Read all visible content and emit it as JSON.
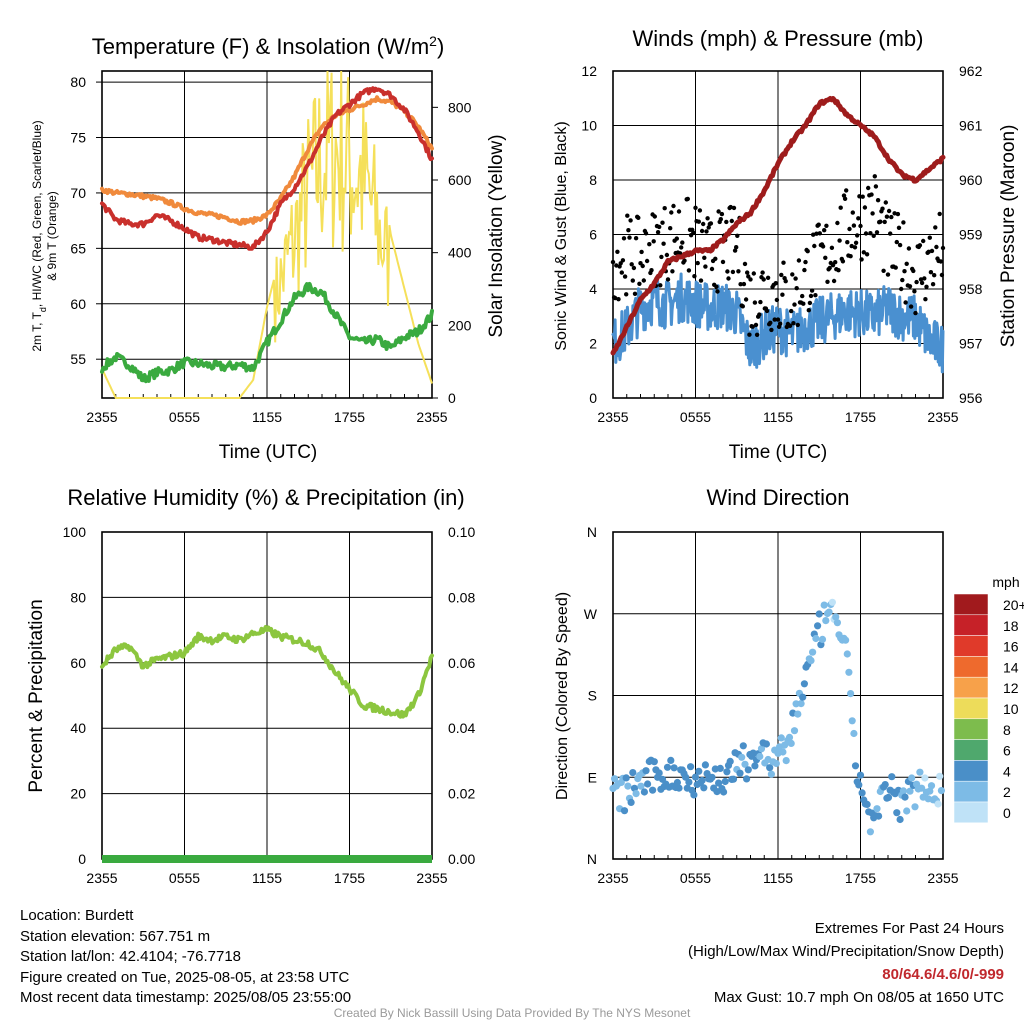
{
  "panels": {
    "temperature": {
      "title": "Temperature (F) & Insolation (W/m",
      "title_sup": "2",
      "title_end": ")",
      "ylabel_left": "2m T, T",
      "ylabel_left_sub": "d",
      "ylabel_left_rest": ", HI/WC (Red, Green, Scarlet/Blue)",
      "ylabel_left_line2": "& 9m T (Orange)",
      "ylabel_right": "Solar Insolation (Yellow)",
      "xlabel": "Time (UTC)"
    },
    "winds": {
      "title": "Winds (mph) & Pressure (mb)",
      "ylabel_left": "Sonic Wind & Gust (Blue, Black)",
      "ylabel_right": "Station Pressure (Maroon)",
      "xlabel": "Time (UTC)"
    },
    "humidity": {
      "title": "Relative Humidity (%) & Precipitation (in)",
      "ylabel_left": "Percent & Precipitation"
    },
    "direction": {
      "title": "Wind Direction",
      "ylabel_left": "Direction (Colored By Speed)",
      "legend_title": "mph"
    }
  },
  "x_ticks": [
    "2355",
    "0555",
    "1155",
    "1755",
    "2355"
  ],
  "chart_data": [
    {
      "type": "line",
      "title": "Temperature (F) & Insolation (W/m2)",
      "xlabel": "Time (UTC)",
      "x_range_hours": [
        0,
        24
      ],
      "ylim_left": [
        51.5,
        81
      ],
      "ylim_right": [
        0,
        900
      ],
      "yticks_left": [
        55,
        60,
        65,
        70,
        75,
        80
      ],
      "yticks_right": [
        0,
        200,
        400,
        600,
        800
      ],
      "series": [
        {
          "name": "9m T (Orange)",
          "color": "#f08a3c",
          "axis": "left",
          "x": [
            0,
            1,
            2,
            3,
            4,
            5,
            6,
            7,
            8,
            9,
            10,
            11,
            12,
            13,
            14,
            15,
            16,
            17,
            18,
            19,
            20,
            21,
            22,
            23,
            24
          ],
          "y": [
            70.3,
            70.0,
            69.9,
            69.7,
            69.5,
            69.1,
            68.6,
            68.2,
            68.0,
            67.8,
            67.4,
            67.5,
            68.0,
            69.5,
            71.5,
            74.0,
            76.0,
            77.0,
            77.5,
            78.0,
            78.5,
            78.2,
            77.4,
            76.0,
            74.0
          ]
        },
        {
          "name": "2m T (Red)",
          "color": "#c9302c",
          "axis": "left",
          "x": [
            0,
            1,
            2,
            3,
            4,
            5,
            6,
            7,
            8,
            9,
            10,
            11,
            12,
            13,
            14,
            15,
            16,
            17,
            18,
            19,
            20,
            21,
            22,
            23,
            24
          ],
          "y": [
            69.0,
            67.6,
            67.2,
            67.2,
            68.0,
            67.5,
            66.8,
            66.0,
            65.8,
            65.5,
            65.3,
            65.1,
            66.5,
            69.0,
            70.5,
            72.5,
            75.0,
            77.0,
            78.0,
            79.0,
            79.5,
            78.8,
            77.5,
            75.5,
            73.0
          ]
        },
        {
          "name": "Td (Green)",
          "color": "#3aaa3f",
          "axis": "left",
          "x": [
            0,
            1,
            2,
            3,
            4,
            5,
            6,
            7,
            8,
            9,
            10,
            11,
            12,
            13,
            14,
            15,
            16,
            17,
            18,
            19,
            20,
            21,
            22,
            23,
            24
          ],
          "y": [
            54.2,
            55.2,
            54.5,
            53.2,
            53.8,
            54.0,
            54.7,
            54.6,
            54.4,
            54.3,
            54.5,
            54.2,
            56.5,
            58.5,
            60.5,
            61.5,
            61.0,
            59.0,
            57.0,
            56.5,
            56.8,
            56.0,
            57.0,
            57.5,
            59.0
          ]
        },
        {
          "name": "Solar Insolation (Yellow)",
          "color": "#f5e05a",
          "axis": "right",
          "x": [
            0,
            1,
            2,
            3,
            4,
            5,
            6,
            7,
            8,
            9,
            10,
            11,
            12,
            13,
            14,
            15,
            16,
            17,
            18,
            19,
            20,
            21,
            22,
            23,
            24
          ],
          "y": [
            80,
            0,
            0,
            0,
            0,
            0,
            0,
            0,
            0,
            0,
            0,
            50,
            250,
            400,
            550,
            700,
            820,
            850,
            800,
            750,
            600,
            450,
            300,
            150,
            40
          ]
        }
      ]
    },
    {
      "type": "line",
      "title": "Winds (mph) & Pressure (mb)",
      "xlabel": "Time (UTC)",
      "x_range_hours": [
        0,
        24
      ],
      "ylim_left": [
        0,
        12
      ],
      "ylim_right": [
        956,
        962
      ],
      "yticks_left": [
        0,
        2,
        4,
        6,
        8,
        10,
        12
      ],
      "yticks_right": [
        956,
        957,
        958,
        959,
        960,
        961,
        962
      ],
      "series": [
        {
          "name": "Sonic Wind (Blue)",
          "color": "#4a90d0",
          "axis": "left",
          "x": [
            0,
            1,
            2,
            3,
            4,
            5,
            6,
            7,
            8,
            9,
            10,
            11,
            12,
            13,
            14,
            15,
            16,
            17,
            18,
            19,
            20,
            21,
            22,
            23,
            24
          ],
          "y": [
            2.0,
            2.5,
            3.3,
            3.6,
            3.4,
            3.7,
            3.5,
            3.3,
            3.4,
            3.1,
            1.8,
            2.3,
            2.6,
            2.3,
            2.6,
            2.8,
            3.0,
            3.2,
            3.1,
            3.0,
            3.3,
            3.0,
            2.9,
            2.1,
            1.8
          ]
        },
        {
          "name": "Gust (Black)",
          "color": "#000000",
          "axis": "left",
          "style": "points",
          "x": [
            0,
            1,
            2,
            3,
            4,
            5,
            6,
            7,
            8,
            9,
            10,
            11,
            12,
            13,
            14,
            15,
            16,
            17,
            18,
            19,
            20,
            21,
            22,
            23,
            24
          ],
          "y": [
            5.0,
            5.3,
            5.1,
            5.5,
            5.8,
            6.0,
            5.7,
            5.2,
            5.5,
            5.6,
            3.5,
            4.0,
            3.8,
            3.5,
            4.5,
            5.0,
            5.5,
            6.2,
            6.5,
            7.0,
            5.5,
            5.2,
            4.5,
            5.0,
            5.5
          ]
        },
        {
          "name": "Station Pressure (Maroon)",
          "color": "#9e1c1c",
          "axis": "right",
          "x": [
            0,
            1,
            2,
            3,
            4,
            5,
            6,
            7,
            8,
            9,
            10,
            11,
            12,
            13,
            14,
            15,
            16,
            17,
            18,
            19,
            20,
            21,
            22,
            23,
            24
          ],
          "y": [
            956.8,
            957.3,
            957.8,
            958.1,
            958.5,
            958.6,
            958.7,
            958.7,
            958.9,
            959.2,
            959.4,
            959.8,
            960.3,
            960.7,
            961.0,
            961.4,
            961.5,
            961.2,
            961.0,
            960.8,
            960.4,
            960.1,
            960.0,
            960.2,
            960.4
          ]
        }
      ]
    },
    {
      "type": "line",
      "title": "Relative Humidity (%) & Precipitation (in)",
      "x_range_hours": [
        0,
        24
      ],
      "ylim_left": [
        0,
        100
      ],
      "ylim_right": [
        0,
        0.1
      ],
      "yticks_left": [
        0,
        20,
        40,
        60,
        80,
        100
      ],
      "yticks_right": [
        "0.00",
        "0.02",
        "0.04",
        "0.06",
        "0.08",
        "0.10"
      ],
      "series": [
        {
          "name": "Relative Humidity",
          "color": "#8cc63f",
          "axis": "left",
          "x": [
            0,
            1,
            2,
            3,
            4,
            5,
            6,
            7,
            8,
            9,
            10,
            11,
            12,
            13,
            14,
            15,
            16,
            17,
            18,
            19,
            20,
            21,
            22,
            23,
            24
          ],
          "y": [
            59,
            64,
            65,
            59,
            61,
            62,
            63,
            68,
            67,
            68,
            67,
            69,
            70,
            68,
            67,
            66,
            63,
            57,
            52,
            47,
            46,
            45,
            44,
            50,
            62
          ]
        },
        {
          "name": "Precipitation",
          "color": "#3aaa3f",
          "axis": "right",
          "x": [
            0,
            24
          ],
          "y": [
            0,
            0
          ]
        }
      ]
    },
    {
      "type": "scatter",
      "title": "Wind Direction",
      "x_range_hours": [
        0,
        24
      ],
      "yticks": [
        "N",
        "E",
        "S",
        "W",
        "N"
      ],
      "ylim_degrees": [
        0,
        360
      ],
      "legend": {
        "title": "mph",
        "labels": [
          "20+",
          "18",
          "16",
          "14",
          "12",
          "10",
          "8",
          "6",
          "4",
          "2",
          "0"
        ],
        "colors": [
          "#a11a1d",
          "#c62128",
          "#e03a2a",
          "#ee6a2d",
          "#f7a14a",
          "#eddc5a",
          "#7dbc4d",
          "#4fa86d",
          "#4a8fc8",
          "#7dbbe6",
          "#bfe2f7"
        ]
      },
      "series": [
        {
          "name": "direction",
          "x": [
            0.0,
            0.5,
            1.0,
            1.5,
            2.0,
            2.5,
            3.0,
            3.5,
            4.0,
            4.5,
            5.0,
            5.5,
            6.0,
            6.5,
            7.0,
            7.5,
            8.0,
            8.5,
            9.0,
            9.5,
            10.0,
            10.5,
            11.0,
            11.5,
            12.0,
            12.5,
            13.0,
            13.5,
            14.0,
            14.5,
            15.0,
            15.5,
            16.0,
            16.5,
            17.0,
            17.5,
            18.0,
            18.5,
            19.0,
            19.5,
            20.0,
            20.5,
            21.0,
            21.5,
            22.0,
            22.5,
            23.0,
            23.5
          ],
          "y": [
            75,
            70,
            72,
            80,
            85,
            88,
            90,
            92,
            93,
            91,
            93,
            92,
            90,
            90,
            88,
            87,
            90,
            95,
            100,
            105,
            110,
            120,
            115,
            105,
            112,
            115,
            140,
            175,
            200,
            220,
            250,
            265,
            265,
            260,
            220,
            120,
            85,
            50,
            40,
            60,
            75,
            70,
            60,
            70,
            78,
            85,
            80,
            75
          ],
          "speed": [
            2,
            2,
            3,
            3,
            3,
            4,
            4,
            4,
            4,
            4,
            4,
            4,
            4,
            4,
            4,
            4,
            4,
            4,
            3,
            3,
            4,
            4,
            3,
            3,
            3,
            2,
            3,
            2,
            3,
            3,
            4,
            2,
            1,
            2,
            2,
            3,
            4,
            4,
            3,
            3,
            4,
            4,
            3,
            3,
            2,
            2,
            1,
            1
          ]
        }
      ]
    }
  ],
  "info": {
    "location": "Location: Burdett",
    "elevation": "Station elevation: 567.751 m",
    "latlon": "Station lat/lon: 42.4104; -76.7718",
    "created": "Figure created on Tue, 2025-08-05, at 23:58 UTC",
    "recent": "Most recent data timestamp: 2025/08/05 23:55:00"
  },
  "extremes": {
    "title": "Extremes For Past 24 Hours",
    "subtitle": "(High/Low/Max Wind/Precipitation/Snow Depth)",
    "values": "80/64.6/4.6/0/-999",
    "gust": "Max Gust: 10.7 mph On 08/05 at 1650 UTC"
  },
  "footer": "Created By Nick Bassill Using Data Provided By The NYS Mesonet"
}
